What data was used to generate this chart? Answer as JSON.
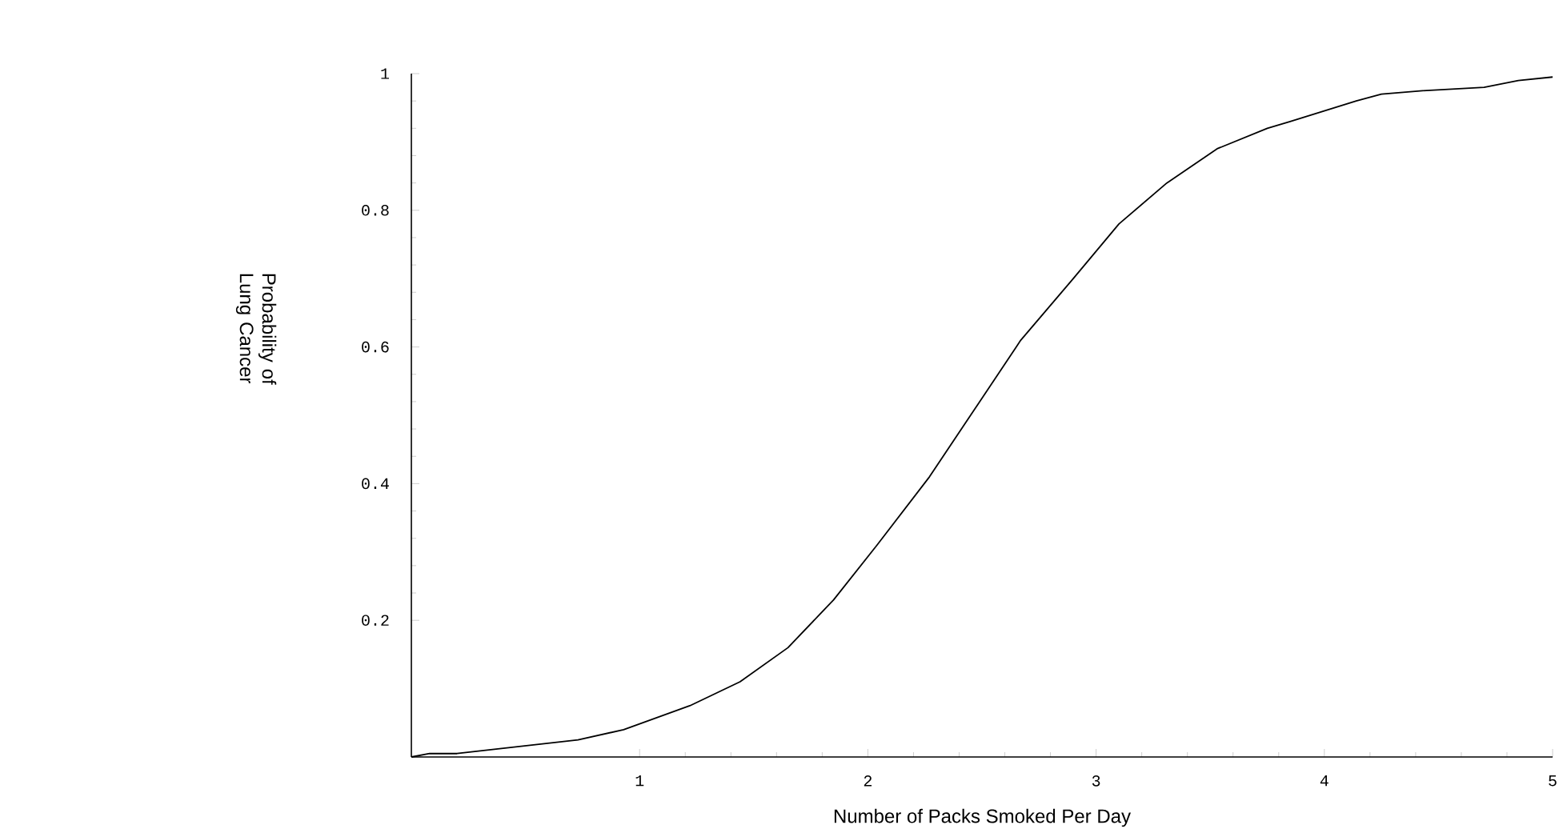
{
  "chart_data": {
    "type": "line",
    "xlabel": "Number of Packs Smoked Per Day",
    "ylabel": "Probability of Lung Cancer",
    "color": "#000000",
    "marker": "none",
    "x": [
      0,
      0.08,
      0.2,
      0.73,
      0.93,
      1.22,
      1.44,
      1.65,
      1.85,
      2.04,
      2.27,
      2.48,
      2.67,
      2.9,
      3.1,
      3.31,
      3.53,
      3.75,
      3.85,
      4.14,
      4.25,
      4.43,
      4.7,
      4.85,
      5
    ],
    "values": [
      0,
      0.005,
      0.005,
      0.025,
      0.04,
      0.075,
      0.11,
      0.16,
      0.23,
      0.31,
      0.41,
      0.515,
      0.61,
      0.7,
      0.78,
      0.84,
      0.89,
      0.92,
      0.93,
      0.96,
      0.97,
      0.975,
      0.98,
      0.99,
      0.995
    ],
    "xlim": [
      0,
      5
    ],
    "ylim": [
      0,
      1
    ],
    "xticks": [
      1,
      2,
      3,
      4,
      5
    ],
    "yticks": [
      0.2,
      0.4,
      0.6,
      0.8,
      1
    ]
  }
}
